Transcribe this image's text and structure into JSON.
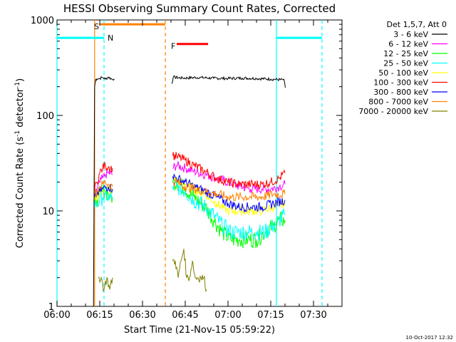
{
  "chart_data": {
    "type": "line",
    "title": "HESSI Observing Summary Count Rates, Corrected",
    "xlabel": "Start Time (21-Nov-15 05:59:22)",
    "ylabel_parts": [
      "Corrected Count Rate (s",
      "-1",
      " detector",
      "-1",
      ")"
    ],
    "x_unit": "minutes after 06:00",
    "xlim": [
      0,
      100
    ],
    "ylim": [
      1,
      1000
    ],
    "y_scale": "log",
    "x_ticks": [
      {
        "v": 0,
        "label": "06:00"
      },
      {
        "v": 15,
        "label": "06:15"
      },
      {
        "v": 30,
        "label": "06:30"
      },
      {
        "v": 45,
        "label": "06:45"
      },
      {
        "v": 60,
        "label": "07:00"
      },
      {
        "v": 75,
        "label": "07:15"
      },
      {
        "v": 90,
        "label": "07:30"
      }
    ],
    "y_ticks": [
      {
        "v": 1,
        "label": "1"
      },
      {
        "v": 10,
        "label": "10"
      },
      {
        "v": 100,
        "label": "100"
      },
      {
        "v": 1000,
        "label": "1000"
      }
    ],
    "legend_title": "Det 1,5,7, Att 0",
    "legend_position": "right, outside plot",
    "series": [
      {
        "name": "3 - 6 keV",
        "color": "#000000",
        "x": [
          12.8,
          13.2,
          13.6,
          14,
          15,
          16,
          17,
          18,
          19.5,
          20,
          20.2,
          40.3,
          40.8,
          44,
          50,
          55,
          60,
          65,
          70,
          75,
          79.2,
          79.6,
          80.1
        ],
        "y": [
          1,
          200,
          238,
          241,
          245,
          250,
          240,
          252,
          238,
          240,
          240,
          215,
          252,
          246,
          250,
          245,
          244,
          246,
          244,
          240,
          236,
          240,
          195
        ]
      },
      {
        "name": "6 - 12 keV",
        "color": "#ff00ff",
        "x": [
          13.2,
          14,
          15,
          16,
          17,
          18,
          19.5,
          40.6,
          42,
          45,
          48,
          52,
          56,
          60,
          64,
          68,
          72,
          75,
          78,
          80
        ],
        "y": [
          15,
          17,
          20,
          22,
          24,
          25,
          24,
          28,
          30,
          28,
          26,
          24,
          22,
          20,
          18,
          17,
          17,
          17,
          18,
          19
        ]
      },
      {
        "name": "12 - 25 keV",
        "color": "#00ff00",
        "x": [
          13.2,
          14,
          15,
          16,
          17,
          18,
          19.5,
          40.6,
          42,
          45,
          48,
          52,
          55,
          58,
          61,
          64,
          67,
          70,
          73,
          76,
          78,
          80
        ],
        "y": [
          12,
          13,
          15,
          16,
          16,
          15,
          14,
          20,
          20,
          17,
          14,
          11,
          8,
          6,
          5,
          5,
          5,
          5,
          6,
          7,
          8,
          8
        ]
      },
      {
        "name": "25 - 50 keV",
        "color": "#00ffff",
        "x": [
          13.2,
          14,
          15,
          16,
          17,
          18,
          19.5,
          40.6,
          42,
          45,
          48,
          52,
          55,
          58,
          61,
          64,
          67,
          70,
          73,
          76,
          78,
          80
        ],
        "y": [
          11,
          12,
          13,
          14,
          15,
          14,
          13,
          18,
          18,
          16,
          13,
          11,
          9,
          7,
          6,
          6,
          6,
          6,
          6,
          7,
          8,
          9
        ]
      },
      {
        "name": "50 - 100 keV",
        "color": "#ffff00",
        "x": [
          13.2,
          14,
          16,
          18,
          19.5,
          40.6,
          42,
          45,
          48,
          52,
          56,
          60,
          64,
          68,
          72,
          76,
          80
        ],
        "y": [
          13,
          14,
          17,
          17,
          16,
          22,
          21,
          19,
          17,
          15,
          12,
          10,
          10,
          10,
          10,
          11,
          12
        ]
      },
      {
        "name": "100 - 300 keV",
        "color": "#ff0000",
        "x": [
          13.2,
          14,
          15,
          16,
          17,
          18,
          19.5,
          40.6,
          42,
          45,
          48,
          52,
          56,
          60,
          64,
          68,
          72,
          75,
          78,
          80
        ],
        "y": [
          17,
          20,
          25,
          28,
          30,
          29,
          28,
          38,
          37,
          34,
          30,
          26,
          22,
          20,
          19,
          19,
          19,
          20,
          22,
          25
        ]
      },
      {
        "name": "300 - 800 keV",
        "color": "#0000ff",
        "x": [
          13.2,
          14,
          16,
          18,
          19.5,
          40.6,
          42,
          45,
          48,
          52,
          56,
          60,
          64,
          68,
          72,
          76,
          80
        ],
        "y": [
          14,
          15,
          17,
          18,
          17,
          23,
          22,
          20,
          18,
          16,
          14,
          12,
          11,
          11,
          11,
          12,
          13
        ]
      },
      {
        "name": "800 - 7000 keV",
        "color": "#ff8000",
        "x": [
          13.2,
          14,
          15,
          16,
          17,
          18,
          19.5,
          40.6,
          42,
          45,
          48,
          52,
          56,
          60,
          64,
          68,
          72,
          76,
          80
        ],
        "y": [
          15,
          16,
          18,
          19,
          20,
          19,
          18,
          20,
          20,
          18,
          17,
          16,
          15,
          14,
          14,
          14,
          14,
          15,
          15
        ]
      },
      {
        "name": "7000 - 20000 keV",
        "color": "#808000",
        "x": [
          14.5,
          15.5,
          16.5,
          17.5,
          18.5,
          19.5,
          40.5,
          41.5,
          42.5,
          43.5,
          44.5,
          45.5,
          46.5,
          47.5,
          48.5,
          49.5,
          50.5,
          51.5,
          52.5
        ],
        "y": [
          2,
          2,
          1.5,
          2,
          1.5,
          2,
          3,
          3,
          2,
          3,
          4,
          2,
          2,
          3,
          2,
          2,
          2,
          2,
          1.5
        ]
      }
    ],
    "intervals": [
      {
        "label": "S",
        "color": "#ff8000",
        "x_start": 15,
        "x_end": 38,
        "y": 900
      },
      {
        "label": "F",
        "color": "#ff0000",
        "x_start": 42,
        "x_end": 53,
        "y": 560
      },
      {
        "label": "N",
        "color": "#00ffff",
        "x_start": -1,
        "x_end": 16.5,
        "y": 650
      },
      {
        "label": "",
        "color": "#00ffff",
        "x_start": 77,
        "x_end": 93,
        "y": 650
      }
    ],
    "vlines": [
      {
        "x": 13.2,
        "color": "#ff8000",
        "style": "solid"
      },
      {
        "x": 38,
        "color": "#ff8000",
        "style": "dashed"
      },
      {
        "x": 0,
        "color": "#00ffff",
        "style": "solid"
      },
      {
        "x": 16.5,
        "color": "#00ffff",
        "style": "dashed"
      },
      {
        "x": 77,
        "color": "#00ffff",
        "style": "solid"
      },
      {
        "x": 93,
        "color": "#00ffff",
        "style": "dashed"
      }
    ]
  },
  "footer_date": "10-Oct-2017 12:32"
}
